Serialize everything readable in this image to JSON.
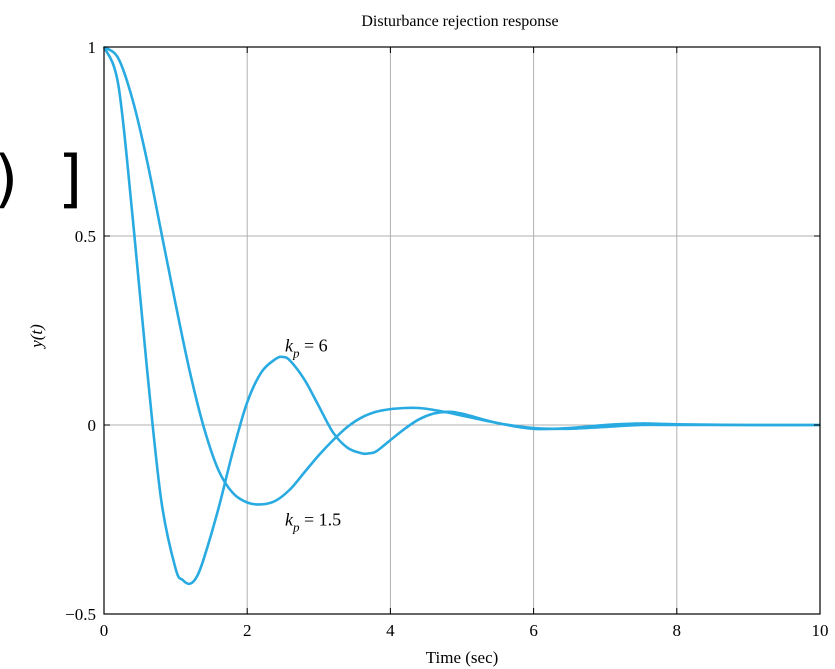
{
  "fragment_text": ")",
  "fragment_bracket": "]",
  "chart_data": {
    "type": "line",
    "title": "Disturbance rejection response",
    "xlabel": "Time (sec)",
    "ylabel": "y(t)",
    "xlim": [
      0,
      10
    ],
    "ylim": [
      -0.5,
      1
    ],
    "x_ticks": [
      "0",
      "2",
      "4",
      "6",
      "8",
      "10"
    ],
    "y_ticks": [
      "−0.5",
      "0",
      "0.5",
      "1"
    ],
    "grid": true,
    "line_color": "#29abe2",
    "series": [
      {
        "name": "k_p = 6",
        "label_main": "k",
        "label_sub": "p",
        "label_rest": " = 6",
        "x": [
          0,
          0.2,
          0.4,
          0.6,
          0.8,
          1.0,
          1.1,
          1.2,
          1.3,
          1.4,
          1.6,
          1.8,
          2.0,
          2.2,
          2.4,
          2.5,
          2.6,
          2.8,
          3.0,
          3.2,
          3.4,
          3.6,
          3.7,
          3.8,
          4.0,
          4.2,
          4.4,
          4.6,
          4.8,
          5.0,
          5.5,
          6.0,
          6.5,
          7.0,
          7.5,
          8.0,
          9.0,
          10.0
        ],
        "y": [
          1,
          0.9,
          0.55,
          0.15,
          -0.2,
          -0.38,
          -0.41,
          -0.42,
          -0.4,
          -0.35,
          -0.22,
          -0.07,
          0.06,
          0.14,
          0.175,
          0.18,
          0.17,
          0.12,
          0.05,
          -0.02,
          -0.06,
          -0.075,
          -0.075,
          -0.07,
          -0.04,
          -0.01,
          0.015,
          0.03,
          0.035,
          0.03,
          0.005,
          -0.01,
          -0.008,
          0.0,
          0.004,
          0.002,
          0.0,
          0.0
        ]
      },
      {
        "name": "k_p = 1.5",
        "label_main": "k",
        "label_sub": "p",
        "label_rest": " = 1.5",
        "x": [
          0,
          0.2,
          0.4,
          0.6,
          0.8,
          1.0,
          1.2,
          1.4,
          1.6,
          1.8,
          2.0,
          2.2,
          2.4,
          2.6,
          2.8,
          3.0,
          3.2,
          3.4,
          3.6,
          3.8,
          4.0,
          4.2,
          4.4,
          4.6,
          4.8,
          5.0,
          5.5,
          6.0,
          6.5,
          7.0,
          7.5,
          8.0,
          9.0,
          10.0
        ],
        "y": [
          1,
          0.97,
          0.86,
          0.7,
          0.51,
          0.32,
          0.14,
          -0.01,
          -0.12,
          -0.18,
          -0.205,
          -0.21,
          -0.2,
          -0.17,
          -0.125,
          -0.08,
          -0.04,
          -0.005,
          0.02,
          0.035,
          0.042,
          0.045,
          0.045,
          0.04,
          0.033,
          0.025,
          0.005,
          -0.008,
          -0.01,
          -0.005,
          0.0,
          0.0,
          0.0,
          0.0
        ]
      }
    ],
    "annotations": [
      {
        "series": 0,
        "at_x": 2.5,
        "at_y": 0.21
      },
      {
        "series": 1,
        "at_x": 2.5,
        "at_y": -0.25
      }
    ]
  }
}
